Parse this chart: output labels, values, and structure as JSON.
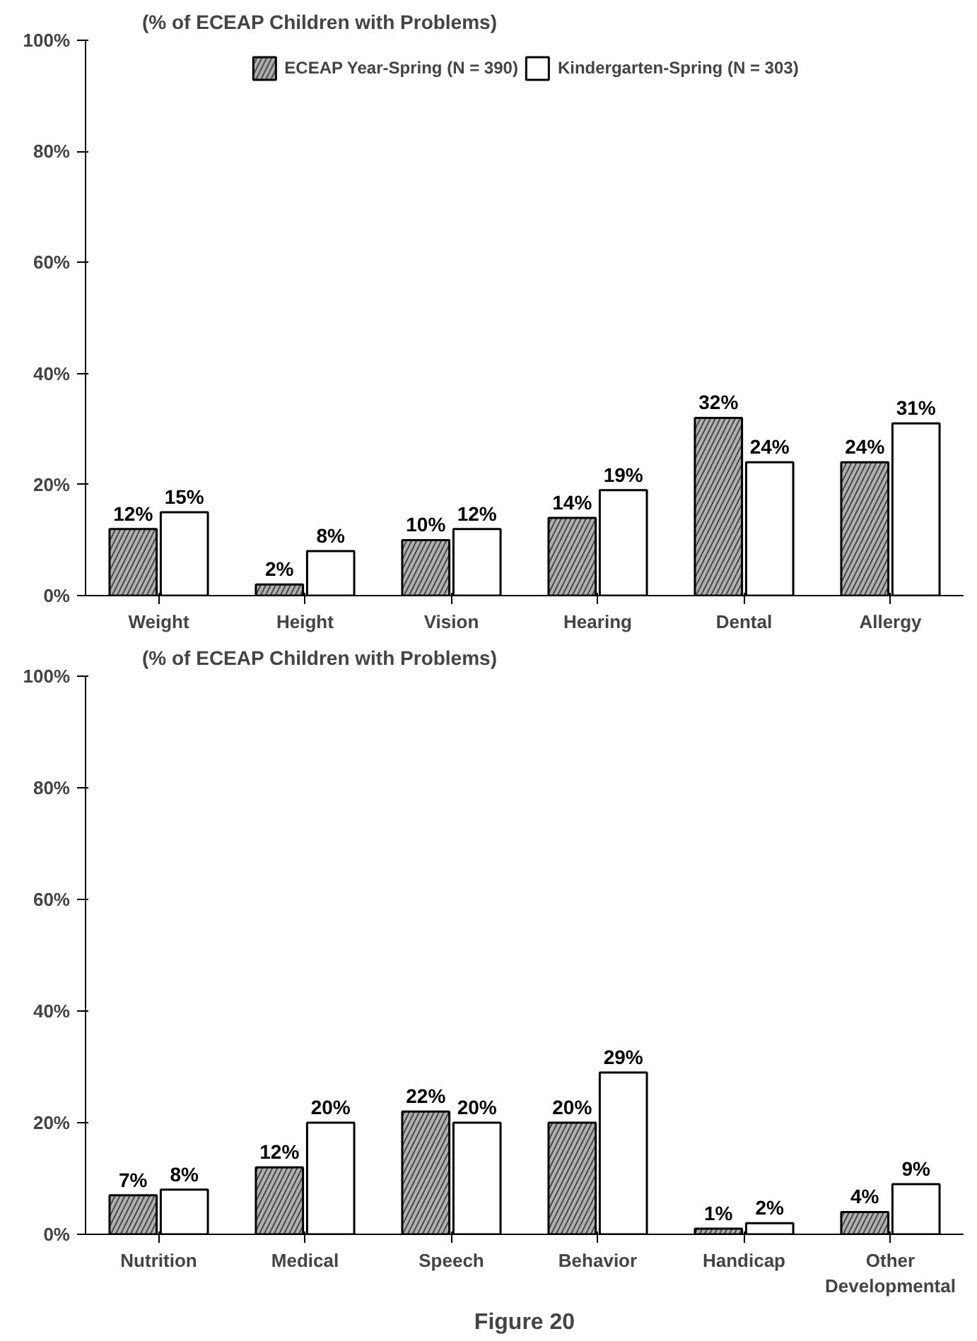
{
  "chart_data": [
    {
      "type": "bar",
      "title": "(% of ECEAP Children with Problems)",
      "categories": [
        "Weight",
        "Height",
        "Vision",
        "Hearing",
        "Dental",
        "Allergy"
      ],
      "series": [
        {
          "name": "ECEAP Year-Spring (N = 390)",
          "color": "#b0b0b0",
          "values": [
            12,
            2,
            10,
            14,
            32,
            24
          ],
          "value_labels": [
            "12%",
            "2%",
            "10%",
            "14%",
            "32%",
            "24%"
          ]
        },
        {
          "name": "Kindergarten-Spring (N = 303)",
          "color": "#ffffff",
          "values": [
            15,
            8,
            12,
            19,
            24,
            31
          ],
          "value_labels": [
            "15%",
            "8%",
            "12%",
            "19%",
            "24%",
            "31%"
          ]
        }
      ],
      "ylim": [
        0,
        100
      ],
      "yticks": [
        {
          "value": 0,
          "label": "0%"
        },
        {
          "value": 20,
          "label": "20%"
        },
        {
          "value": 40,
          "label": "40%"
        },
        {
          "value": 60,
          "label": "60%"
        },
        {
          "value": 80,
          "label": "80%"
        },
        {
          "value": 100,
          "label": "100%"
        }
      ],
      "grid": false,
      "legend": "top"
    },
    {
      "type": "bar",
      "title": "(% of ECEAP Children with Problems)",
      "categories": [
        "Nutrition",
        "Medical",
        "Speech",
        "Behavior",
        "Handicap",
        "Other Developmental"
      ],
      "series": [
        {
          "color": "#b0b0b0",
          "values": [
            7,
            12,
            22,
            20,
            1,
            4
          ],
          "value_labels": [
            "7%",
            "12%",
            "22%",
            "20%",
            "1%",
            "4%"
          ]
        },
        {
          "color": "#ffffff",
          "values": [
            8,
            20,
            20,
            29,
            2,
            9
          ],
          "value_labels": [
            "8%",
            "20%",
            "20%",
            "29%",
            "2%",
            "9%"
          ]
        }
      ],
      "ylim": [
        0,
        100
      ],
      "yticks": [
        {
          "value": 0,
          "label": "0%"
        },
        {
          "value": 20,
          "label": "20%"
        },
        {
          "value": 40,
          "label": "40%"
        },
        {
          "value": 60,
          "label": "60%"
        },
        {
          "value": 80,
          "label": "80%"
        },
        {
          "value": 100,
          "label": "100%"
        }
      ],
      "grid": false,
      "legend": false,
      "annotations": [
        "Figure 20"
      ]
    }
  ]
}
